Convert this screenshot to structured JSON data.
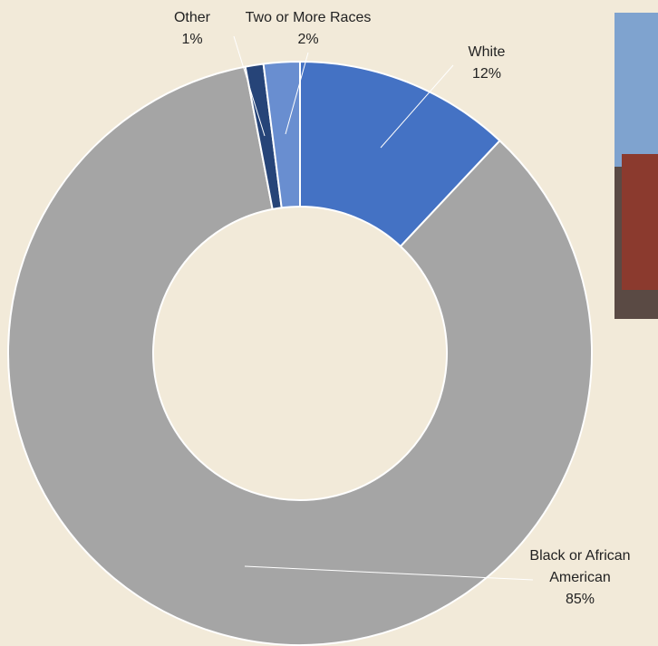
{
  "chart_data": {
    "type": "donut",
    "categories": [
      "White",
      "Black or African American",
      "Other",
      "Two or More Races"
    ],
    "values": [
      12,
      85,
      1,
      2
    ],
    "value_labels": [
      "12%",
      "85%",
      "1%",
      "2%"
    ],
    "colors": [
      "#4472c4",
      "#a5a5a5",
      "#264478",
      "#698ed0"
    ]
  }
}
